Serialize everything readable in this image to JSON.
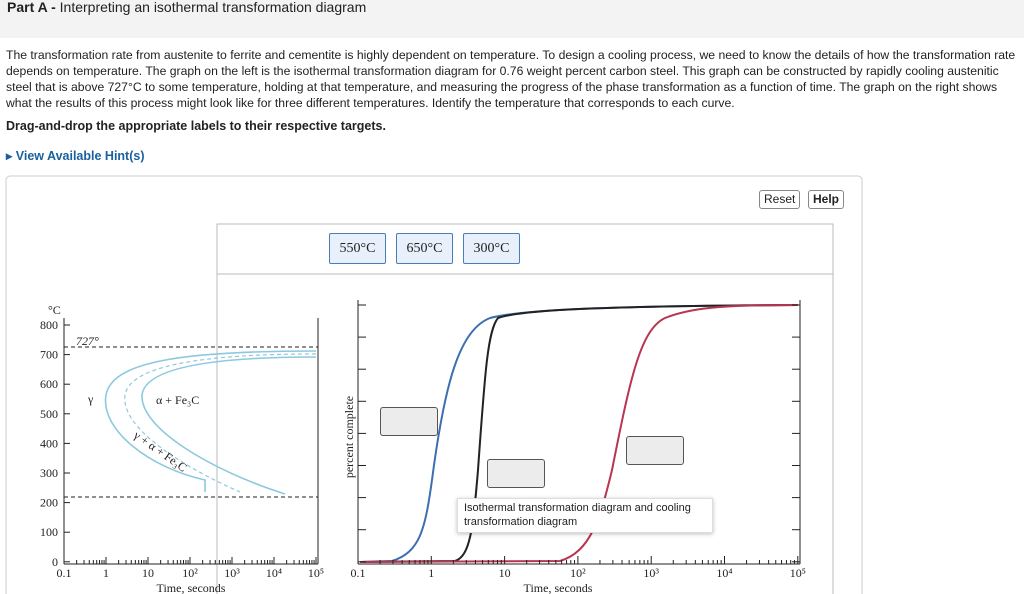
{
  "header": {
    "part": "Part A -",
    "title": "Interpreting an isothermal transformation diagram"
  },
  "intro": "The transformation rate from austenite to ferrite and cementite is highly dependent on temperature. To design a cooling process, we need to know the details of how the transformation rate depends on temperature. The graph on the left is the isothermal transformation diagram for 0.76 weight percent carbon steel. This graph can be constructed by rapidly cooling austenitic steel that is above 727°C to some temperature, holding at that temperature, and measuring the progress of the phase transformation as a function of time. The graph on the right shows what the results of this process might look like for three different temperatures. Identify the temperature that corresponds to each curve.",
  "instruction": "Drag-and-drop the appropriate labels to their respective targets.",
  "hint": "View Available Hint(s)",
  "buttons": [
    "Reset",
    "Help"
  ],
  "labels": [
    "550°C",
    "650°C",
    "300°C"
  ],
  "left_chart": {
    "y_unit": "°C",
    "yticks": [
      "800",
      "700",
      "600",
      "500",
      "400",
      "300",
      "200",
      "100",
      "0"
    ],
    "xticks": [
      "0.1",
      "1",
      "10",
      "10²",
      "10³",
      "10⁴",
      "10⁵"
    ],
    "xlabel": "Time, seconds",
    "annotations": [
      "727°",
      "γ",
      "α + Fe₃C",
      "γ + α + Fe₃C"
    ]
  },
  "right_chart": {
    "ylabel": "percent complete",
    "xticks": [
      "0.1",
      "1",
      "10",
      "10²",
      "10³",
      "10⁴",
      "10⁵"
    ],
    "xlabel": "Time, seconds"
  },
  "tooltip": "Isothermal transformation diagram and cooling transformation diagram"
}
